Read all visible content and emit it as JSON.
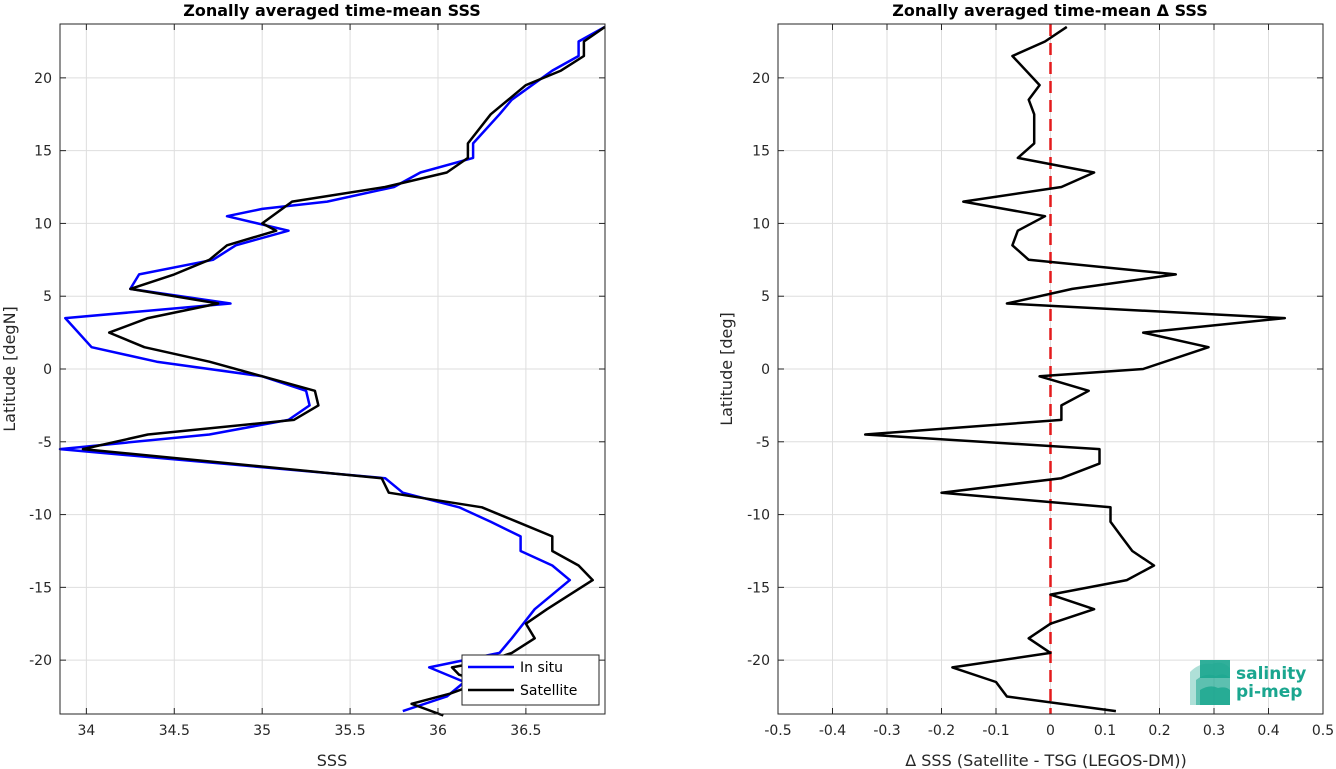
{
  "colors": {
    "in_situ": "#0000ff",
    "satellite": "#000000",
    "zero_line": "#e41a1c",
    "logo": "#1aa68f"
  },
  "logo": {
    "line1": "salinity",
    "line2": "pi-mep"
  },
  "chart_data": [
    {
      "type": "line",
      "title": "Zonally averaged time-mean SSS",
      "xlabel": "SSS",
      "ylabel": "Latitude [degN]",
      "xlim": [
        33.85,
        36.95
      ],
      "ylim": [
        -23.7,
        23.7
      ],
      "xticks": [
        "34",
        "34.5",
        "35",
        "35.5",
        "36",
        "36.5"
      ],
      "xtick_values": [
        34,
        34.5,
        35,
        35.5,
        36,
        36.5
      ],
      "yticks": [
        "-20",
        "-15",
        "-10",
        "-5",
        "0",
        "5",
        "10",
        "15",
        "20"
      ],
      "ytick_values": [
        -20,
        -15,
        -10,
        -5,
        0,
        5,
        10,
        15,
        20
      ],
      "grid": true,
      "legend": {
        "placement": "bottom-right",
        "entries": [
          "In situ",
          "Satellite"
        ]
      },
      "series": [
        {
          "name": "In situ",
          "color_key": "in_situ",
          "points": [
            [
              35.8,
              -23.5
            ],
            [
              36.05,
              -22.5
            ],
            [
              36.15,
              -21.5
            ],
            [
              35.95,
              -20.5
            ],
            [
              36.35,
              -19.5
            ],
            [
              36.42,
              -18.5
            ],
            [
              36.55,
              -16.5
            ],
            [
              36.75,
              -14.5
            ],
            [
              36.65,
              -13.5
            ],
            [
              36.47,
              -12.5
            ],
            [
              36.47,
              -11.5
            ],
            [
              36.3,
              -10.5
            ],
            [
              36.12,
              -9.5
            ],
            [
              35.8,
              -8.5
            ],
            [
              35.7,
              -7.5
            ],
            [
              33.85,
              -5.5
            ],
            [
              34.7,
              -4.5
            ],
            [
              35.15,
              -3.5
            ],
            [
              35.27,
              -2.5
            ],
            [
              35.25,
              -1.5
            ],
            [
              35.0,
              -0.5
            ],
            [
              34.4,
              0.5
            ],
            [
              34.03,
              1.5
            ],
            [
              33.88,
              3.5
            ],
            [
              34.82,
              4.5
            ],
            [
              34.25,
              5.5
            ],
            [
              34.3,
              6.5
            ],
            [
              34.72,
              7.5
            ],
            [
              34.85,
              8.5
            ],
            [
              35.15,
              9.5
            ],
            [
              34.8,
              10.5
            ],
            [
              35.0,
              11.0
            ],
            [
              35.37,
              11.5
            ],
            [
              35.75,
              12.5
            ],
            [
              35.9,
              13.5
            ],
            [
              36.2,
              14.5
            ],
            [
              36.2,
              15.5
            ],
            [
              36.35,
              17.5
            ],
            [
              36.42,
              18.5
            ],
            [
              36.65,
              20.5
            ],
            [
              36.8,
              21.5
            ],
            [
              36.8,
              22.5
            ],
            [
              36.95,
              23.5
            ]
          ]
        },
        {
          "name": "Satellite",
          "color_key": "satellite",
          "points": [
            [
              36.03,
              -23.8
            ],
            [
              35.85,
              -23.0
            ],
            [
              36.07,
              -22.3
            ],
            [
              36.25,
              -21.5
            ],
            [
              36.12,
              -21.0
            ],
            [
              36.08,
              -20.5
            ],
            [
              36.3,
              -20.0
            ],
            [
              36.42,
              -19.5
            ],
            [
              36.55,
              -18.5
            ],
            [
              36.5,
              -17.5
            ],
            [
              36.62,
              -16.5
            ],
            [
              36.88,
              -14.5
            ],
            [
              36.8,
              -13.5
            ],
            [
              36.65,
              -12.5
            ],
            [
              36.65,
              -11.5
            ],
            [
              36.45,
              -10.5
            ],
            [
              36.25,
              -9.5
            ],
            [
              35.72,
              -8.5
            ],
            [
              35.68,
              -7.5
            ],
            [
              33.98,
              -5.5
            ],
            [
              34.35,
              -4.5
            ],
            [
              35.18,
              -3.5
            ],
            [
              35.32,
              -2.5
            ],
            [
              35.3,
              -1.5
            ],
            [
              34.7,
              0.5
            ],
            [
              34.33,
              1.5
            ],
            [
              34.13,
              2.5
            ],
            [
              34.35,
              3.5
            ],
            [
              34.75,
              4.5
            ],
            [
              34.25,
              5.5
            ],
            [
              34.5,
              6.5
            ],
            [
              34.7,
              7.5
            ],
            [
              34.8,
              8.5
            ],
            [
              35.08,
              9.5
            ],
            [
              35.0,
              10.0
            ],
            [
              35.17,
              11.5
            ],
            [
              35.7,
              12.5
            ],
            [
              36.05,
              13.5
            ],
            [
              36.17,
              14.5
            ],
            [
              36.17,
              15.5
            ],
            [
              36.3,
              17.5
            ],
            [
              36.5,
              19.5
            ],
            [
              36.7,
              20.5
            ],
            [
              36.83,
              21.5
            ],
            [
              36.83,
              22.5
            ],
            [
              36.95,
              23.5
            ]
          ]
        }
      ]
    },
    {
      "type": "line",
      "title": "Zonally averaged time-mean Δ SSS",
      "xlabel": "Δ SSS (Satellite - TSG (LEGOS-DM))",
      "ylabel": "Latitude [deg]",
      "xlim": [
        -0.5,
        0.5
      ],
      "ylim": [
        -23.7,
        23.7
      ],
      "xticks": [
        "-0.5",
        "-0.4",
        "-0.3",
        "-0.2",
        "-0.1",
        "0",
        "0.1",
        "0.2",
        "0.3",
        "0.4",
        "0.5"
      ],
      "xtick_values": [
        -0.5,
        -0.4,
        -0.3,
        -0.2,
        -0.1,
        0,
        0.1,
        0.2,
        0.3,
        0.4,
        0.5
      ],
      "yticks": [
        "-20",
        "-15",
        "-10",
        "-5",
        "0",
        "5",
        "10",
        "15",
        "20"
      ],
      "ytick_values": [
        -20,
        -15,
        -10,
        -5,
        0,
        5,
        10,
        15,
        20
      ],
      "grid": true,
      "reference_line": {
        "x": 0,
        "style": "dashed",
        "color_key": "zero_line"
      },
      "series": [
        {
          "color_key": "satellite",
          "points": [
            [
              0.12,
              -23.5
            ],
            [
              -0.08,
              -22.5
            ],
            [
              -0.1,
              -21.5
            ],
            [
              -0.18,
              -20.5
            ],
            [
              0.0,
              -19.5
            ],
            [
              -0.04,
              -18.5
            ],
            [
              0.0,
              -17.5
            ],
            [
              0.08,
              -16.5
            ],
            [
              0.0,
              -15.5
            ],
            [
              0.14,
              -14.5
            ],
            [
              0.19,
              -13.5
            ],
            [
              0.15,
              -12.5
            ],
            [
              0.13,
              -11.5
            ],
            [
              0.11,
              -10.5
            ],
            [
              0.11,
              -9.5
            ],
            [
              -0.2,
              -8.5
            ],
            [
              0.02,
              -7.5
            ],
            [
              0.09,
              -6.5
            ],
            [
              0.09,
              -5.5
            ],
            [
              -0.34,
              -4.5
            ],
            [
              0.02,
              -3.5
            ],
            [
              0.02,
              -2.5
            ],
            [
              0.07,
              -1.5
            ],
            [
              -0.02,
              -0.5
            ],
            [
              0.17,
              0.0
            ],
            [
              0.29,
              1.5
            ],
            [
              0.17,
              2.5
            ],
            [
              0.43,
              3.5
            ],
            [
              -0.08,
              4.5
            ],
            [
              0.04,
              5.5
            ],
            [
              0.23,
              6.5
            ],
            [
              -0.04,
              7.5
            ],
            [
              -0.07,
              8.5
            ],
            [
              -0.06,
              9.5
            ],
            [
              -0.01,
              10.5
            ],
            [
              -0.16,
              11.5
            ],
            [
              0.02,
              12.5
            ],
            [
              0.08,
              13.5
            ],
            [
              -0.06,
              14.5
            ],
            [
              -0.03,
              15.5
            ],
            [
              -0.03,
              17.5
            ],
            [
              -0.04,
              18.5
            ],
            [
              -0.02,
              19.5
            ],
            [
              -0.07,
              21.5
            ],
            [
              -0.01,
              22.5
            ],
            [
              0.03,
              23.5
            ]
          ]
        }
      ]
    }
  ]
}
